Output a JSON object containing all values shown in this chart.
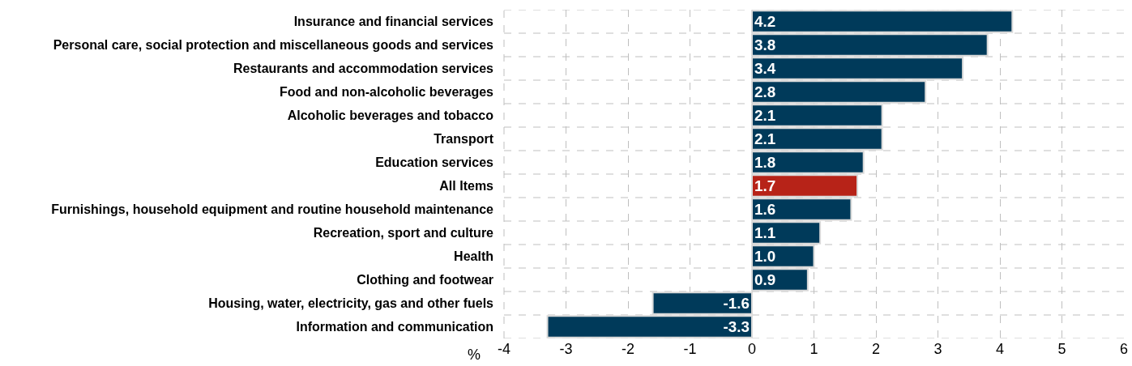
{
  "chart_data": {
    "type": "bar",
    "orientation": "horizontal",
    "xlabel": "%",
    "categories": [
      "Insurance and financial services",
      "Personal care, social protection and miscellaneous goods and services",
      "Restaurants and accommodation services",
      "Food and non-alcoholic beverages",
      "Alcoholic beverages and tobacco",
      "Transport",
      "Education services",
      "All Items",
      "Furnishings, household equipment and routine household maintenance",
      "Recreation, sport and culture",
      "Health",
      "Clothing and footwear",
      "Housing, water, electricity, gas and other fuels",
      "Information and communication"
    ],
    "values": [
      4.2,
      3.8,
      3.4,
      2.8,
      2.1,
      2.1,
      1.8,
      1.7,
      1.6,
      1.1,
      1.0,
      0.9,
      -1.6,
      -3.3
    ],
    "value_labels": [
      "4.2",
      "3.8",
      "3.4",
      "2.8",
      "2.1",
      "2.1",
      "1.8",
      "1.7",
      "1.6",
      "1.1",
      "1.0",
      "0.9",
      "-1.6",
      "-3.3"
    ],
    "colors": [
      "#003a5a",
      "#003a5a",
      "#003a5a",
      "#003a5a",
      "#003a5a",
      "#003a5a",
      "#003a5a",
      "#b72318",
      "#003a5a",
      "#003a5a",
      "#003a5a",
      "#003a5a",
      "#003a5a",
      "#003a5a"
    ],
    "xlim": [
      -4,
      6
    ],
    "xticks": [
      -4,
      -3,
      -2,
      -1,
      0,
      1,
      2,
      3,
      4,
      5,
      6
    ],
    "grid": true
  }
}
